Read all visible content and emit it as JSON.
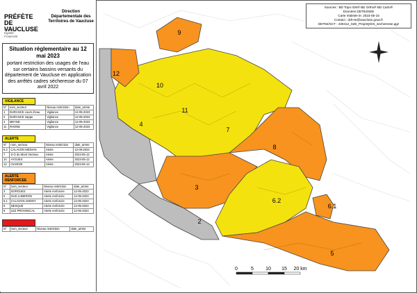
{
  "header": {
    "prefecture": "PRÉFÈTE DE VAUCLUSE",
    "motto": [
      "Liberté",
      "Égalité",
      "Fraternité"
    ],
    "service": "Direction Départementale des Territoires de Vaucluse"
  },
  "title": "Situation réglementaire au 12 mai 2023",
  "subtitle": "portant restriction des usages de l'eau sur certains bassins versants du département de Vaucluse en application des arrêtés cadres sécheresse du 07 avril 2022",
  "legend_tables": [
    {
      "title": "VIGILANCE",
      "columns": [
        "N°",
        "nom_secteur",
        "Niveau restriction",
        "date_arrete"
      ],
      "rows": [
        [
          "1",
          "DURANCE cours d'eau",
          "Vigilance",
          "12-05-2023"
        ],
        [
          "2",
          "DURANCE nappe",
          "Vigilance",
          "12-05-2023"
        ],
        [
          "4",
          "MEYNE",
          "Vigilance",
          "12-05-2023"
        ],
        [
          "11",
          "RHONE",
          "Vigilance",
          "12-05-2023"
        ]
      ]
    },
    {
      "title": "ALERTE",
      "columns": [
        "N°",
        "nom_secteur",
        "Niveau restriction",
        "date_arrete"
      ],
      "rows": [
        [
          "6.2",
          "CALAVON MEDIAN",
          "Alerte",
          "12-05-2023"
        ],
        [
          "7",
          "S-O du Mont Ventoux",
          "Alerte",
          "2023-05-12"
        ],
        [
          "10",
          "AYGUES",
          "Alerte",
          "2023-05-12"
        ],
        [
          "12",
          "OUVEZE",
          "Alerte",
          "2023-05-12"
        ]
      ]
    },
    {
      "title": "ALERTE RENFORCEE",
      "columns": [
        "N°",
        "nom_secteur",
        "Niveau restriction",
        "date_arrete"
      ],
      "rows": [
        [
          "3",
          "SORGUES",
          "Alerte renforcée",
          "12-05-2023"
        ],
        [
          "5",
          "SUD LUBERON",
          "Alerte renforcée",
          "12-05-2023"
        ],
        [
          "6.1",
          "CALAVON AMONT",
          "Alerte renforcée",
          "12-05-2023"
        ],
        [
          "8",
          "NESQUE",
          "Alerte renforcée",
          "12-05-2023"
        ],
        [
          "9",
          "LEZ PROVENCAL",
          "Alerte renforcée",
          "12-05-2023"
        ]
      ]
    },
    {
      "title": "CRISE",
      "columns": [
        "N°",
        "nom_secteur",
        "Niveau restriction",
        "date_arrete"
      ],
      "rows": []
    }
  ],
  "sources": [
    "Sources : BD Topo IGN® BD Ortho® BD Carto®",
    "Données DDT84/SEE",
    "Carte réalisée le: 2023-05-15",
    "Contact : ddt-se@vaucluse.gouv.fr",
    "DDT84/SCT - 230412_S2E_ProjetQGIS_secheresse.qgz"
  ],
  "map_labels": [
    "9",
    "12",
    "10",
    "11",
    "4",
    "7",
    "8",
    "3",
    "6.2",
    "6.1",
    "2",
    "5"
  ],
  "scale_labels": [
    "0",
    "5",
    "10",
    "15",
    "20 km"
  ]
}
